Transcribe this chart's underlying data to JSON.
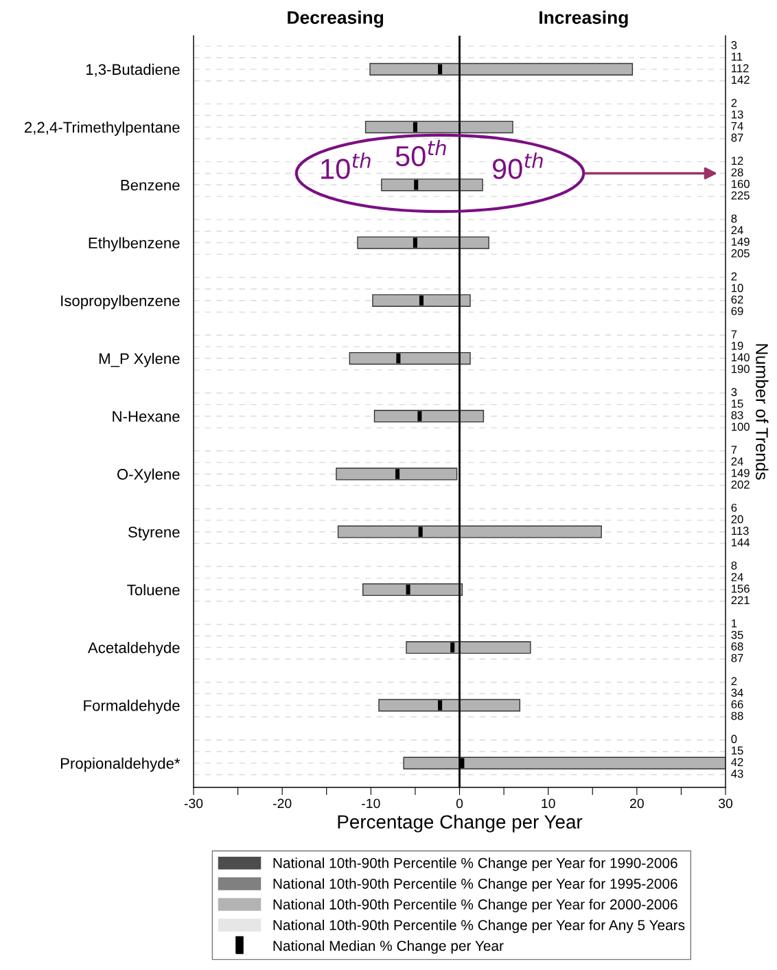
{
  "chart_data": {
    "type": "bar",
    "orientation": "horizontal",
    "categories": [
      "1,3-Butadiene",
      "2,2,4-Trimethylpentane",
      "Benzene",
      "Ethylbenzene",
      "Isopropylbenzene",
      "M_P Xylene",
      "N-Hexane",
      "O-Xylene",
      "Styrene",
      "Toluene",
      "Acetaldehyde",
      "Formaldehyde",
      "Propionaldehyde*"
    ],
    "series": [
      {
        "name": "National 10th-90th Percentile % Change per Year for 1990-2006",
        "color": "#4d4d4d",
        "values": [
          null,
          null,
          null,
          null,
          null,
          null,
          null,
          null,
          null,
          null,
          null,
          null,
          null
        ]
      },
      {
        "name": "National 10th-90th Percentile % Change per Year for 1995-2006",
        "color": "#808080",
        "values": [
          null,
          null,
          null,
          null,
          null,
          null,
          null,
          null,
          null,
          null,
          null,
          null,
          null
        ]
      },
      {
        "name": "National 10th-90th Percentile % Change per Year for 2000-2006",
        "color": "#b3b3b3",
        "base": [
          -10.1,
          -10.6,
          -8.8,
          -11.5,
          -9.8,
          -12.4,
          -9.6,
          -13.9,
          -13.7,
          -10.9,
          -6.0,
          -9.1,
          -6.3
        ],
        "values": [
          29.6,
          16.6,
          11.4,
          14.8,
          11.0,
          13.6,
          12.3,
          13.6,
          29.7,
          11.2,
          14.0,
          15.9,
          36.3
        ]
      },
      {
        "name": "National 10th-90th Percentile % Change per Year for Any 5 Years",
        "color": "#e6e6e6",
        "values": [
          null,
          null,
          null,
          null,
          null,
          null,
          null,
          null,
          null,
          null,
          null,
          null,
          null
        ]
      },
      {
        "name": "National Median % Change per Year",
        "type": "scatter",
        "color": "#000000",
        "marker": "square",
        "values": [
          -2.2,
          -5.0,
          -4.9,
          -5.0,
          -4.3,
          -6.9,
          -4.5,
          -7.0,
          -4.4,
          -5.8,
          -0.8,
          -2.2,
          0.3
        ]
      }
    ],
    "xlabel": "Percentage Change per Year",
    "y2label": "Number of Trends",
    "xlim": [
      -30,
      30
    ],
    "xticks": [
      -30,
      {
        "value": -25,
        "label": null
      },
      -20,
      {
        "value": -15,
        "label": null
      },
      -10,
      {
        "value": -5,
        "label": null
      },
      0,
      {
        "value": 5,
        "label": null
      },
      10,
      {
        "value": 15,
        "label": null
      },
      20,
      {
        "value": 25,
        "label": null
      },
      30
    ],
    "ref_lines": [
      {
        "axis": "x",
        "value": 0,
        "color": "#000000",
        "line_style": "solid"
      }
    ],
    "grid": "y",
    "legend": "bottom",
    "annotations": [
      "Decreasing",
      "Increasing",
      {
        "text": "10$^{th}$",
        "x": -8.8,
        "y": "Benzene"
      },
      {
        "text": "50$^{th}$",
        "x": -4.9,
        "y": "Benzene"
      },
      {
        "text": "90$^{th}$",
        "x": 2.6,
        "y": "Benzene"
      },
      "3",
      "11",
      "112",
      "142",
      "2",
      "13",
      "74",
      "87",
      "12",
      "28",
      "160",
      "225",
      "8",
      "24",
      "149",
      "205",
      "2",
      "10",
      "62",
      "69",
      "7",
      "19",
      "140",
      "190",
      "3",
      "15",
      "83",
      "100",
      "7",
      "24",
      "149",
      "202",
      "6",
      "20",
      "113",
      "144",
      "8",
      "24",
      "156",
      "221",
      "1",
      "35",
      "68",
      "87",
      "2",
      "34",
      "66",
      "88",
      "0",
      "15",
      "42",
      "43"
    ]
  }
}
